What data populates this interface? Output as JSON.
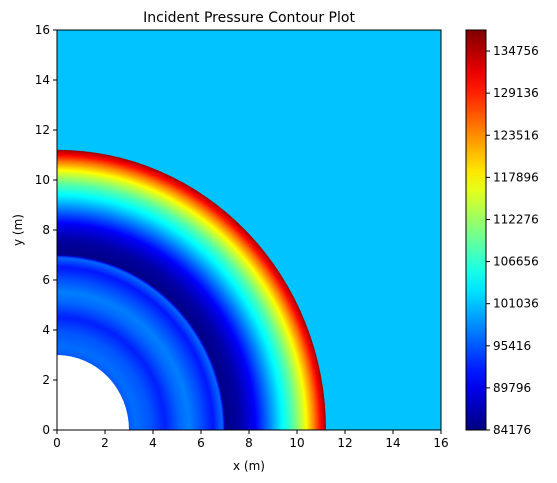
{
  "chart_data": {
    "type": "heatmap",
    "title": "Incident Pressure Contour Plot",
    "xlabel": "x (m)",
    "ylabel": "y (m)",
    "xlim": [
      0,
      16
    ],
    "ylim": [
      0,
      16
    ],
    "x_ticks": [
      "0",
      "2",
      "4",
      "6",
      "8",
      "10",
      "12",
      "14",
      "16"
    ],
    "y_ticks": [
      "0",
      "2",
      "4",
      "6",
      "8",
      "10",
      "12",
      "14",
      "16"
    ],
    "grid": false,
    "colormap": "jet",
    "colorbar": {
      "ticks": [
        "134756",
        "129136",
        "123516",
        "117896",
        "112276",
        "106656",
        "101036",
        "95416",
        "89796",
        "84176"
      ],
      "range": [
        84176,
        137566
      ]
    },
    "background_value": 101036,
    "blank_radius": 3.0,
    "radial_profile": [
      {
        "r": 3.0,
        "value": 95500
      },
      {
        "r": 3.3,
        "value": 96600
      },
      {
        "r": 3.9,
        "value": 95300
      },
      {
        "r": 4.5,
        "value": 92500
      },
      {
        "r": 5.1,
        "value": 96200
      },
      {
        "r": 5.5,
        "value": 97500
      },
      {
        "r": 6.0,
        "value": 95000
      },
      {
        "r": 6.5,
        "value": 92000
      },
      {
        "r": 6.9,
        "value": 96500
      },
      {
        "r": 7.0,
        "value": 84500
      },
      {
        "r": 7.6,
        "value": 86000
      },
      {
        "r": 8.2,
        "value": 90000
      },
      {
        "r": 8.8,
        "value": 97000
      },
      {
        "r": 9.3,
        "value": 103000
      },
      {
        "r": 9.8,
        "value": 108500
      },
      {
        "r": 10.3,
        "value": 116000
      },
      {
        "r": 10.7,
        "value": 124000
      },
      {
        "r": 11.0,
        "value": 131000
      },
      {
        "r": 11.2,
        "value": 136000
      }
    ]
  }
}
